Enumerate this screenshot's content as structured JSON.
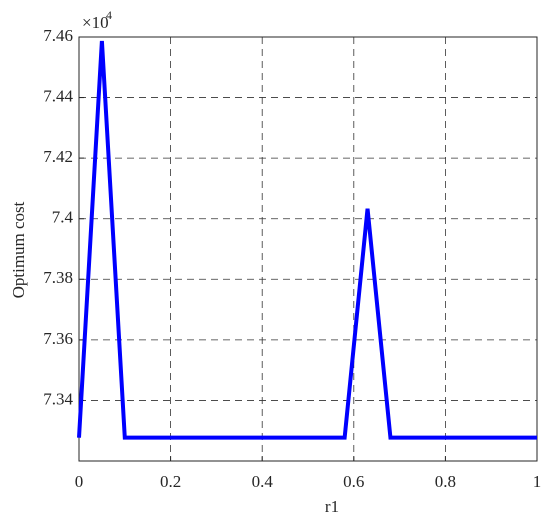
{
  "chart_data": {
    "type": "line",
    "x_label": "r1",
    "y_label": "Optimum cost",
    "y_scale_label": "×10",
    "y_scale_exponent": "4",
    "x": [
      0,
      0.05,
      0.1,
      0.58,
      0.63,
      0.68,
      1
    ],
    "series": [
      {
        "name": "Optimum cost",
        "color": "#0000ff",
        "values": [
          7.3277,
          7.4587,
          7.3277,
          7.3277,
          7.4033,
          7.3277,
          7.3277
        ]
      }
    ],
    "xlim": [
      0,
      1
    ],
    "xticks": [
      0,
      0.2,
      0.4,
      0.6,
      0.8,
      1
    ],
    "ylim": [
      7.32,
      7.46
    ],
    "yticks": [
      7.34,
      7.36,
      7.38,
      7.4,
      7.42,
      7.44,
      7.46
    ],
    "grid": true
  }
}
